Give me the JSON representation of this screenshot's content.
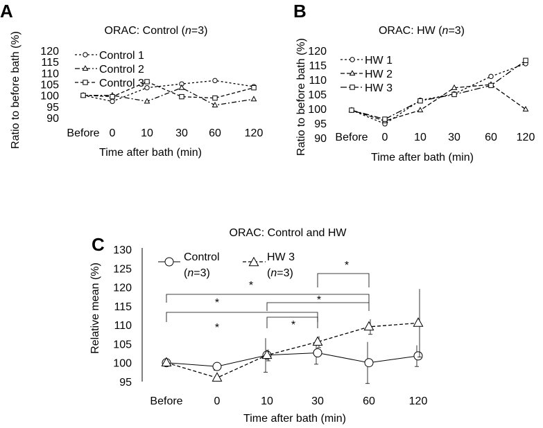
{
  "chart_data": [
    {
      "panel": "A",
      "type": "line",
      "title_prefix": "ORAC: Control (",
      "title_n": "n",
      "title_suffix": "=3)",
      "xlabel": "Time after bath (min)",
      "ylabel": "Ratio to before bath (%)",
      "categories": [
        "Before",
        "0",
        "10",
        "30",
        "60",
        "120"
      ],
      "yticks": [
        "90",
        "95",
        "100",
        "105",
        "110",
        "115",
        "120"
      ],
      "ylim": [
        90,
        120
      ],
      "series": [
        {
          "name": "Control 1",
          "marker": "circle",
          "dash": "3,3",
          "values": [
            100,
            97.3,
            103.4,
            105.1,
            106.6,
            103.9
          ]
        },
        {
          "name": "Control 2",
          "marker": "triangle",
          "dash": "7,3,2,3",
          "values": [
            100,
            100,
            97.3,
            103.4,
            95.6,
            98.3
          ]
        },
        {
          "name": "Control 3",
          "marker": "square",
          "dash": "5,3",
          "values": [
            100,
            99.4,
            106.1,
            99.4,
            98.8,
            103.4
          ]
        }
      ]
    },
    {
      "panel": "B",
      "type": "line",
      "title_prefix": "ORAC: HW (",
      "title_n": "n",
      "title_suffix": "=3)",
      "xlabel": "Time after bath (min)",
      "ylabel": "Ratio to before bath (%)",
      "categories": [
        "Before",
        "0",
        "10",
        "30",
        "60",
        "120"
      ],
      "yticks": [
        "90",
        "95",
        "100",
        "105",
        "110",
        "115",
        "120"
      ],
      "ylim": [
        90,
        120
      ],
      "series": [
        {
          "name": "HW 1",
          "marker": "circle",
          "dash": "3,3",
          "values": [
            99.5,
            94.8,
            102.9,
            105.1,
            111.1,
            115.5
          ]
        },
        {
          "name": "HW 2",
          "marker": "triangle",
          "dash": "6,3",
          "values": [
            99.5,
            95.8,
            99.5,
            107.2,
            108.3,
            99.8
          ]
        },
        {
          "name": "HW 3",
          "marker": "square",
          "dash": "9,3,2,3",
          "values": [
            99.5,
            96.4,
            102.7,
            104.9,
            108.0,
            116.6
          ]
        }
      ]
    },
    {
      "panel": "C",
      "type": "line",
      "title": "ORAC: Control and HW",
      "xlabel": "Time after bath (min)",
      "ylabel": "Relative mean (%)",
      "categories": [
        "Before",
        "0",
        "10",
        "30",
        "60",
        "120"
      ],
      "yticks": [
        "95",
        "100",
        "105",
        "110",
        "115",
        "120",
        "125",
        "130"
      ],
      "ylim": [
        95,
        130
      ],
      "series": [
        {
          "name_line1": "Control",
          "name_n": "n",
          "name_suffix": "=3)",
          "marker": "circle",
          "dash": "",
          "values": [
            100,
            99,
            102,
            102.6,
            100,
            101.8
          ],
          "error": [
            0.5,
            1.0,
            4.5,
            3.0,
            5.5,
            2.8
          ]
        },
        {
          "name_line1": "HW 3",
          "name_n": "n",
          "name_suffix": "=3)",
          "marker": "triangle",
          "dash": "5,3",
          "values": [
            100,
            96,
            102,
            105.5,
            109.5,
            110.5
          ],
          "error": [
            0.5,
            0.8,
            1.5,
            1.5,
            2.0,
            9.0
          ]
        }
      ],
      "significance": [
        {
          "from": "Before",
          "to": "30",
          "label": "*"
        },
        {
          "from": "Before",
          "to": "60",
          "label": "*"
        },
        {
          "from": "10",
          "to": "60",
          "label": "*"
        },
        {
          "from": "10",
          "to": "30",
          "label": "*"
        },
        {
          "from": "30",
          "to": "60",
          "label": "*"
        }
      ],
      "significance_extra": "*"
    }
  ]
}
